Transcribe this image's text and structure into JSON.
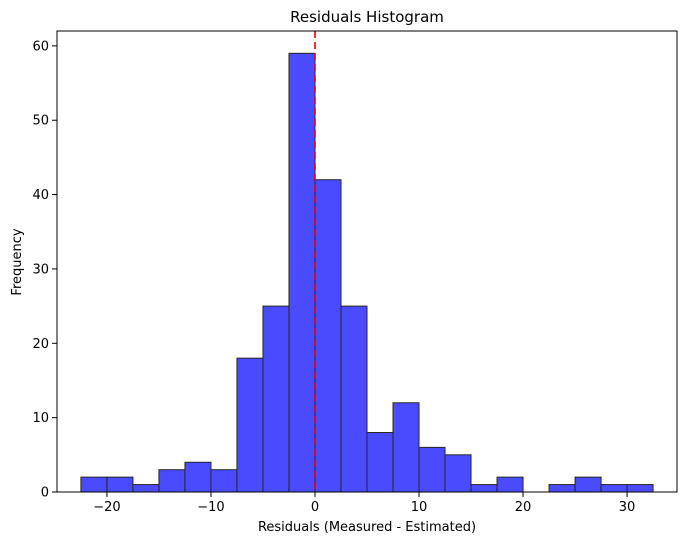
{
  "chart_data": {
    "type": "bar",
    "title": "Residuals Histogram",
    "xlabel": "Residuals (Measured - Estimated)",
    "ylabel": "Frequency",
    "xlim": [
      -24.8,
      34.8
    ],
    "ylim": [
      0,
      62
    ],
    "xticks": [
      -20,
      -10,
      0,
      10,
      20,
      30
    ],
    "yticks": [
      0,
      10,
      20,
      30,
      40,
      50,
      60
    ],
    "bin_edges": [
      -22.5,
      -20,
      -17.5,
      -15,
      -12.5,
      -10,
      -7.5,
      -5,
      -2.5,
      0,
      2.5,
      5,
      7.5,
      10,
      12.5,
      15,
      17.5,
      20,
      22.5,
      25,
      27.5,
      30,
      32.5
    ],
    "values": [
      2,
      2,
      1,
      3,
      4,
      3,
      18,
      25,
      59,
      42,
      25,
      8,
      12,
      6,
      5,
      1,
      2,
      0,
      1,
      2,
      1,
      1
    ],
    "bar_color": "#4a4aff",
    "bar_edge_color": "#262626",
    "reference_line": {
      "x": 0,
      "color": "#e00000",
      "style": "dashed"
    },
    "grid": false,
    "legend": "none"
  }
}
